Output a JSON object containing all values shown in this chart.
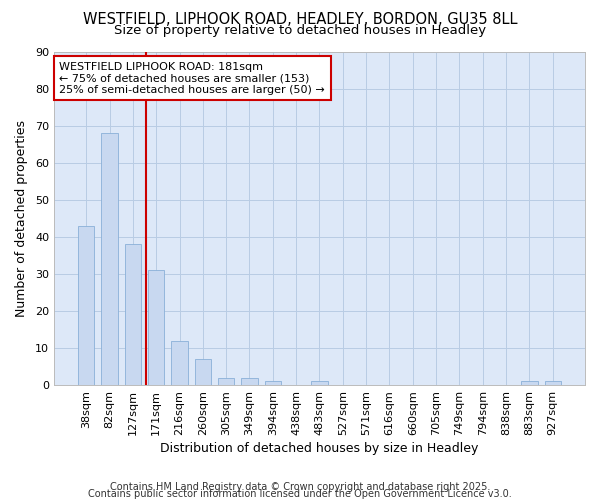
{
  "title_line1": "WESTFIELD, LIPHOOK ROAD, HEADLEY, BORDON, GU35 8LL",
  "title_line2": "Size of property relative to detached houses in Headley",
  "xlabel": "Distribution of detached houses by size in Headley",
  "ylabel": "Number of detached properties",
  "categories": [
    "38sqm",
    "82sqm",
    "127sqm",
    "171sqm",
    "216sqm",
    "260sqm",
    "305sqm",
    "349sqm",
    "394sqm",
    "438sqm",
    "483sqm",
    "527sqm",
    "571sqm",
    "616sqm",
    "660sqm",
    "705sqm",
    "749sqm",
    "794sqm",
    "838sqm",
    "883sqm",
    "927sqm"
  ],
  "values": [
    43,
    68,
    38,
    31,
    12,
    7,
    2,
    2,
    1,
    0,
    1,
    0,
    0,
    0,
    0,
    0,
    0,
    0,
    0,
    1,
    1
  ],
  "bar_color": "#c8d8f0",
  "bar_edge_color": "#8ab0d8",
  "red_line_x": 2.57,
  "annotation_text": "WESTFIELD LIPHOOK ROAD: 181sqm\n← 75% of detached houses are smaller (153)\n25% of semi-detached houses are larger (50) →",
  "annotation_box_color": "#ffffff",
  "annotation_box_edge_color": "#cc0000",
  "footer_line1": "Contains HM Land Registry data © Crown copyright and database right 2025.",
  "footer_line2": "Contains public sector information licensed under the Open Government Licence v3.0.",
  "ylim": [
    0,
    90
  ],
  "yticks": [
    0,
    10,
    20,
    30,
    40,
    50,
    60,
    70,
    80,
    90
  ],
  "bg_color": "#dde8f8",
  "grid_color": "#b8cce4",
  "fig_bg_color": "#ffffff",
  "title_fontsize": 10.5,
  "subtitle_fontsize": 9.5,
  "axis_label_fontsize": 9,
  "tick_fontsize": 8,
  "footer_fontsize": 7
}
